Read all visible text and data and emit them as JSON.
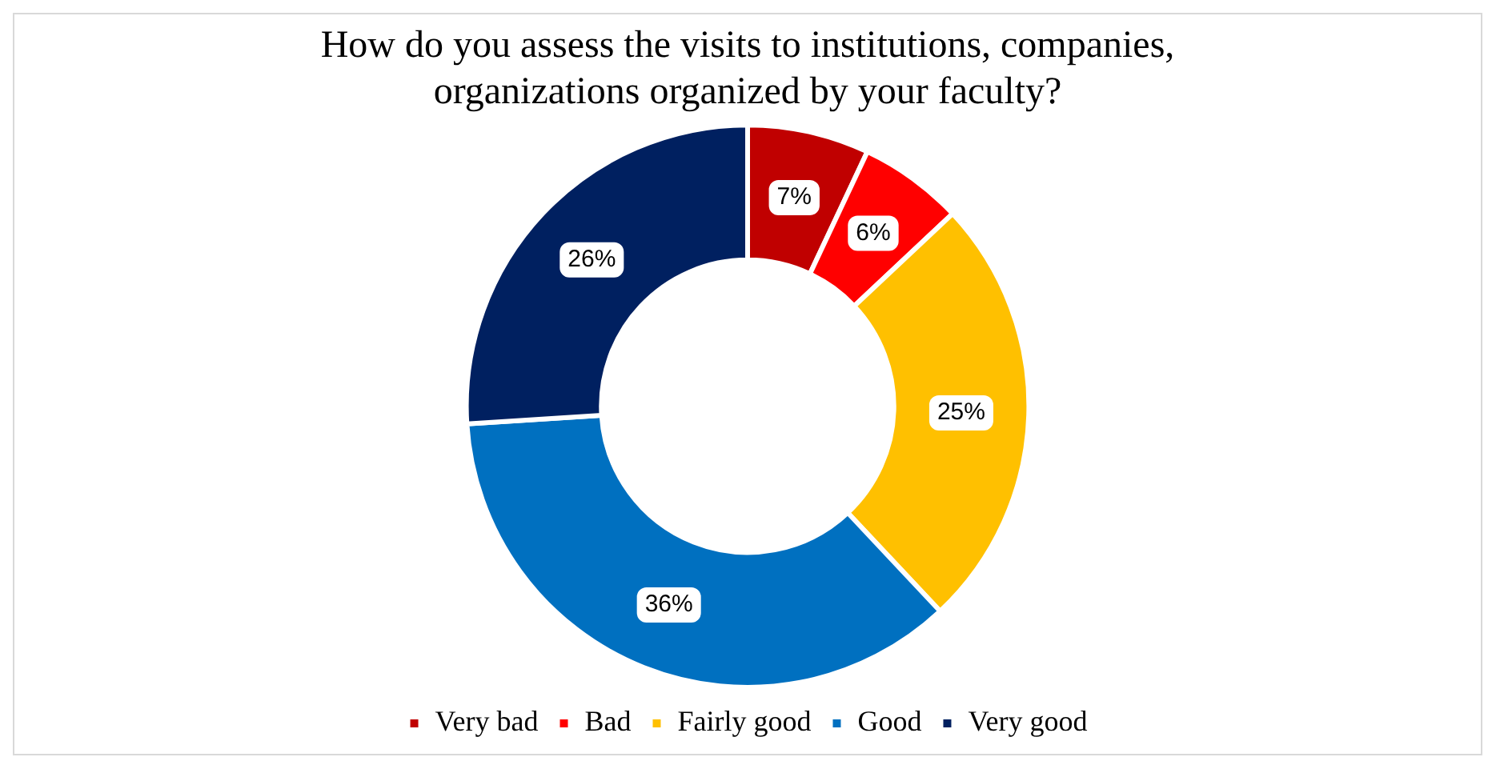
{
  "chart_data": {
    "type": "donut",
    "title": "How do you assess the visits to institutions, companies, organizations organized by your faculty?",
    "categories": [
      "Very bad",
      "Bad",
      "Fairly good",
      "Good",
      "Very good"
    ],
    "values": [
      7,
      6,
      25,
      36,
      26
    ],
    "colors": [
      "#c00000",
      "#ff0000",
      "#ffc000",
      "#0070c0",
      "#002060"
    ],
    "value_labels": [
      "7%",
      "6%",
      "25%",
      "36%",
      "26%"
    ],
    "legend": "bottom"
  }
}
